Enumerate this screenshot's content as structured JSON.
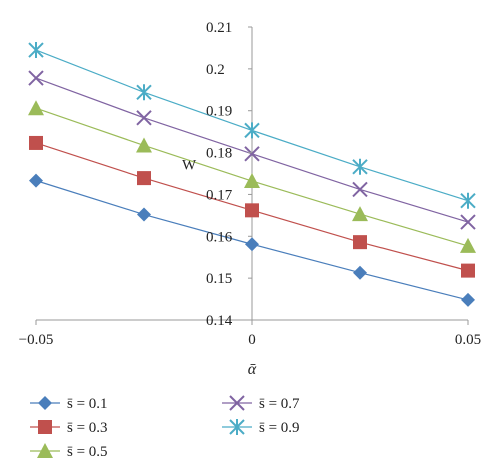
{
  "chart_data": {
    "type": "line",
    "title": "",
    "xlabel": "ᾱ",
    "ylabel": "W",
    "xlim": [
      -0.05,
      0.05
    ],
    "ylim": [
      0.14,
      0.21
    ],
    "x": [
      -0.05,
      -0.025,
      0,
      0.025,
      0.05
    ],
    "x_tick_labels": [
      "−0.05",
      "0",
      "0.05"
    ],
    "x_tick_values": [
      -0.05,
      0,
      0.05
    ],
    "y_ticks": [
      0.14,
      0.15,
      0.16,
      0.17,
      0.18,
      0.19,
      0.2,
      0.21
    ],
    "y_tick_labels": [
      "0.14",
      "0.15",
      "0.16",
      "0.17",
      "0.18",
      "0.19",
      "0.2",
      "0.21"
    ],
    "grid": false,
    "legend_position": "bottom",
    "series": [
      {
        "name": "s̄ = 0.1",
        "marker": "diamond",
        "color": "#4a7ebb",
        "values": [
          0.1733,
          0.1652,
          0.1581,
          0.1513,
          0.1448
        ]
      },
      {
        "name": "s̄ = 0.3",
        "marker": "square",
        "color": "#c0504d",
        "values": [
          0.1823,
          0.1739,
          0.1662,
          0.1586,
          0.1518
        ]
      },
      {
        "name": "s̄ = 0.5",
        "marker": "triangle",
        "color": "#9bbb59",
        "values": [
          0.1906,
          0.1817,
          0.1732,
          0.1653,
          0.1577
        ]
      },
      {
        "name": "s̄ = 0.7",
        "marker": "x",
        "color": "#8064a2",
        "values": [
          0.1978,
          0.1883,
          0.1797,
          0.1712,
          0.1634
        ]
      },
      {
        "name": "s̄ = 0.9",
        "marker": "star",
        "color": "#4bacc6",
        "values": [
          0.2045,
          0.1944,
          0.1853,
          0.1766,
          0.1685
        ]
      }
    ]
  }
}
